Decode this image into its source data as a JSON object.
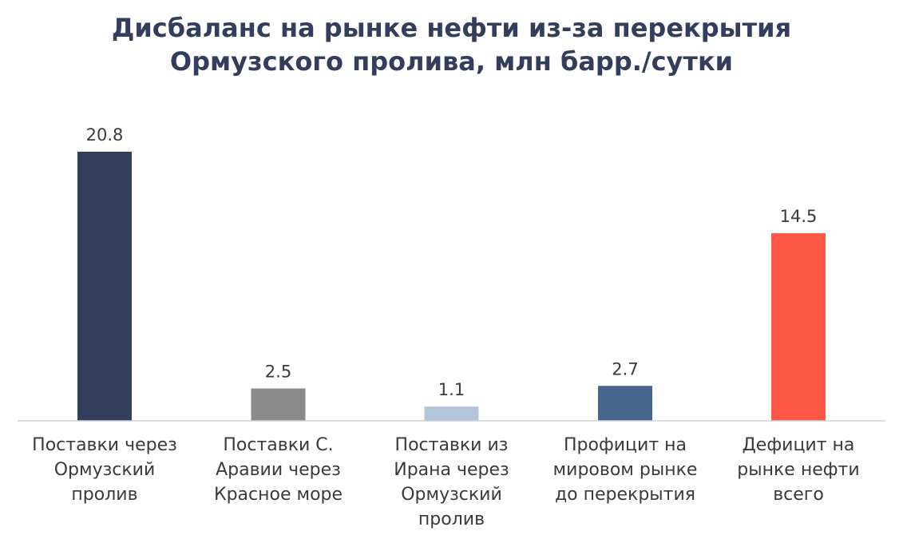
{
  "chart_data": {
    "type": "bar",
    "title_lines": [
      "Дисбаланс на рынке нефти из-за перекрытия",
      "Ормузского пролива, млн барр./сутки"
    ],
    "categories": [
      [
        "Поставки через",
        "Ормузский",
        "пролив"
      ],
      [
        "Поставки С.",
        "Аравии через",
        "Красное море"
      ],
      [
        "Поставки из",
        "Ирана через",
        "Ормузский",
        "пролив"
      ],
      [
        "Профицит на",
        "мировом рынке",
        "до перекрытия"
      ],
      [
        "Дефицит на",
        "рынке нефти",
        "всего"
      ]
    ],
    "values": [
      20.8,
      2.5,
      1.1,
      2.7,
      14.5
    ],
    "value_labels": [
      "20.8",
      "2.5",
      "1.1",
      "2.7",
      "14.5"
    ],
    "colors": [
      "#323e5c",
      "#8a8a8a",
      "#b3c5db",
      "#46648c",
      "#ff5745"
    ],
    "xlabel": "",
    "ylabel": "",
    "ylim": [
      0,
      20.8
    ],
    "grid": false,
    "legend": "none"
  }
}
